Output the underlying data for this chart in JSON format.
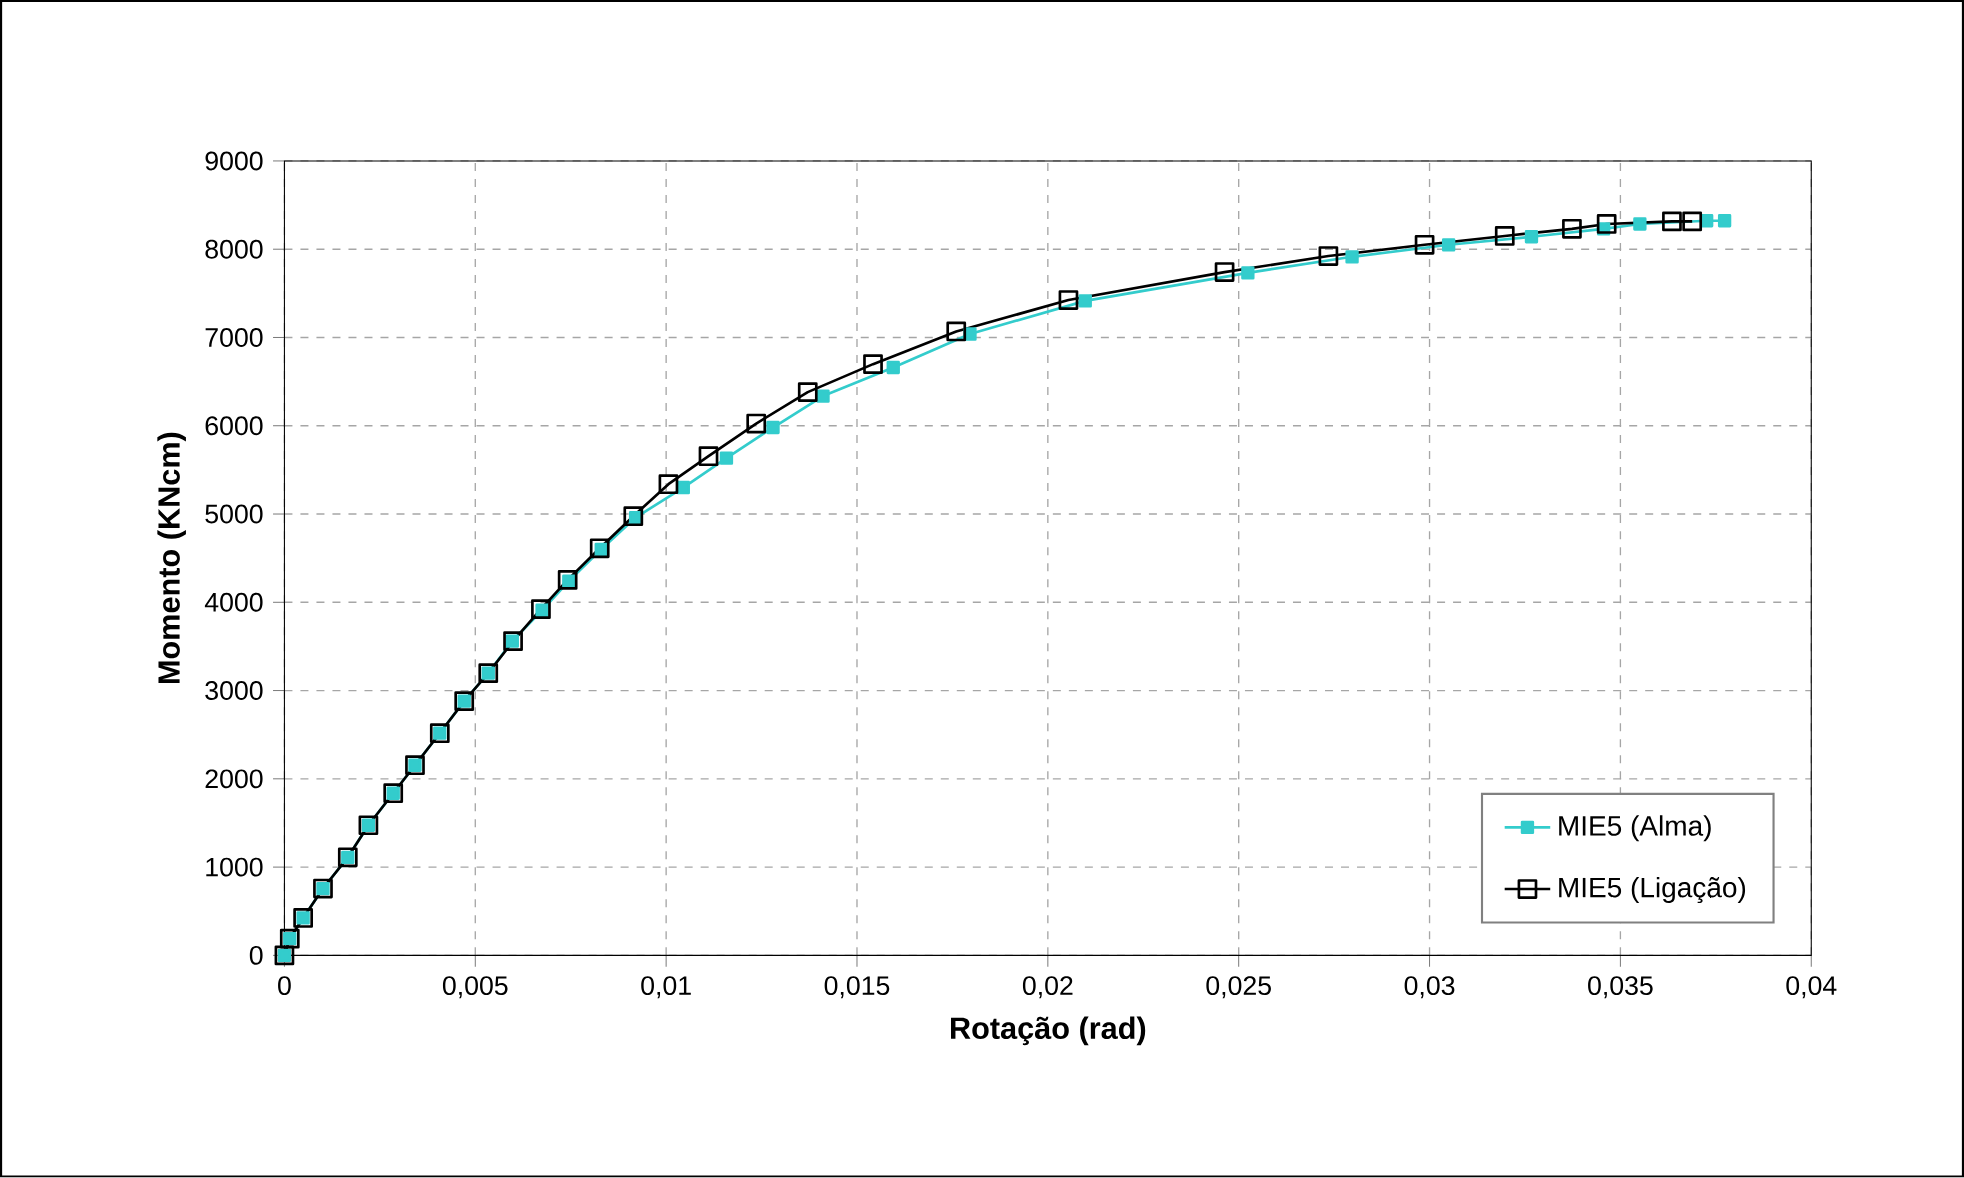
{
  "chart_data": {
    "type": "line",
    "xlabel": "Rotação (rad)",
    "ylabel": "Momento (KNcm)",
    "xlim": [
      0,
      0.04
    ],
    "ylim": [
      0,
      9000
    ],
    "xticks": [
      0,
      {
        "value": 0.005,
        "label": "0,005"
      },
      {
        "value": 0.01,
        "label": "0,01"
      },
      {
        "value": 0.015,
        "label": "0,015"
      },
      {
        "value": 0.02,
        "label": "0,02"
      },
      {
        "value": 0.025,
        "label": "0,025"
      },
      {
        "value": 0.03,
        "label": "0,03"
      },
      {
        "value": 0.035,
        "label": "0,035"
      },
      {
        "value": 0.04,
        "label": "0,04"
      }
    ],
    "yticks": [
      0,
      1000,
      2000,
      3000,
      4000,
      5000,
      6000,
      7000,
      8000,
      9000
    ],
    "grid": true,
    "legend": "bottom right",
    "marker": "square",
    "series": [
      {
        "name": "MIE5 (Alma)",
        "color": "#33cccc",
        "x": [
          0,
          0.00014,
          0.00049,
          0.00101,
          0.00166,
          0.0022,
          0.00285,
          0.00342,
          0.00407,
          0.00471,
          0.00534,
          0.00597,
          0.00675,
          0.00745,
          0.0083,
          0.0092,
          0.01045,
          0.01158,
          0.0128,
          0.01411,
          0.01595,
          0.01796,
          0.02098,
          0.02524,
          0.02797,
          0.0305,
          0.03267,
          0.03456,
          0.03551,
          0.03726,
          0.03773
        ],
        "values": [
          0,
          190,
          424,
          757,
          1111,
          1474,
          1837,
          2154,
          2517,
          2880,
          3197,
          3560,
          3910,
          4240,
          4600,
          4960,
          5300,
          5633,
          5980,
          6336,
          6660,
          7039,
          7415,
          7732,
          7914,
          8050,
          8141,
          8231,
          8286,
          8322,
          8322
        ]
      },
      {
        "name": "MIE5 (Ligação)",
        "color": "#000000",
        "x": [
          0,
          0.00014,
          0.00049,
          0.00101,
          0.00166,
          0.0022,
          0.00285,
          0.00342,
          0.00407,
          0.00471,
          0.00534,
          0.00599,
          0.00672,
          0.00742,
          0.00826,
          0.00914,
          0.01006,
          0.01111,
          0.01236,
          0.01371,
          0.01542,
          0.0176,
          0.02054,
          0.02463,
          0.02735,
          0.02987,
          0.03197,
          0.03373,
          0.03464,
          0.03635,
          0.03688
        ],
        "values": [
          0,
          190,
          424,
          757,
          1111,
          1474,
          1837,
          2154,
          2517,
          2880,
          3197,
          3560,
          3923,
          4254,
          4612,
          4975,
          5338,
          5655,
          6025,
          6381,
          6698,
          7068,
          7424,
          7741,
          7923,
          8050,
          8150,
          8231,
          8286,
          8315,
          8315
        ]
      }
    ]
  }
}
